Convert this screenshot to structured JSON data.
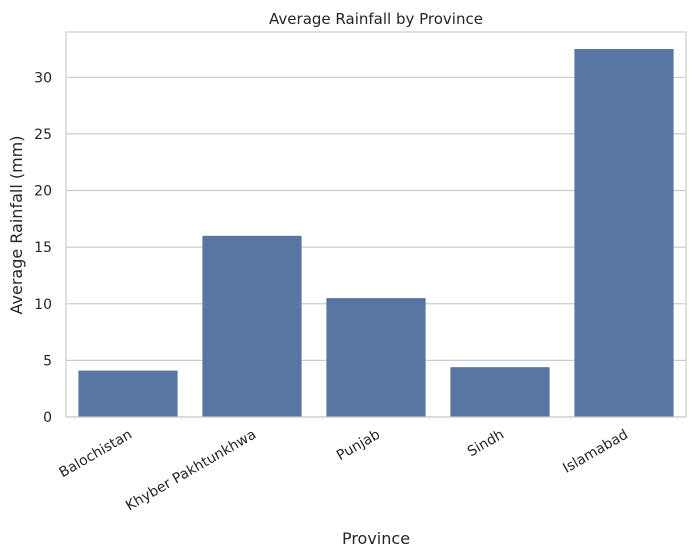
{
  "chart_data": {
    "type": "bar",
    "title": "Average Rainfall by Province",
    "xlabel": "Province",
    "ylabel": "Average Rainfall (mm)",
    "categories": [
      "Balochistan",
      "Khyber Pakhtunkhwa",
      "Punjab",
      "Sindh",
      "Islamabad"
    ],
    "values": [
      4.1,
      16.0,
      10.5,
      4.4,
      32.5
    ],
    "ylim": [
      0,
      34
    ],
    "yticks": [
      0,
      5,
      10,
      15,
      20,
      25,
      30
    ],
    "grid": true,
    "legend": "none",
    "bar_color": "#5975a4"
  }
}
